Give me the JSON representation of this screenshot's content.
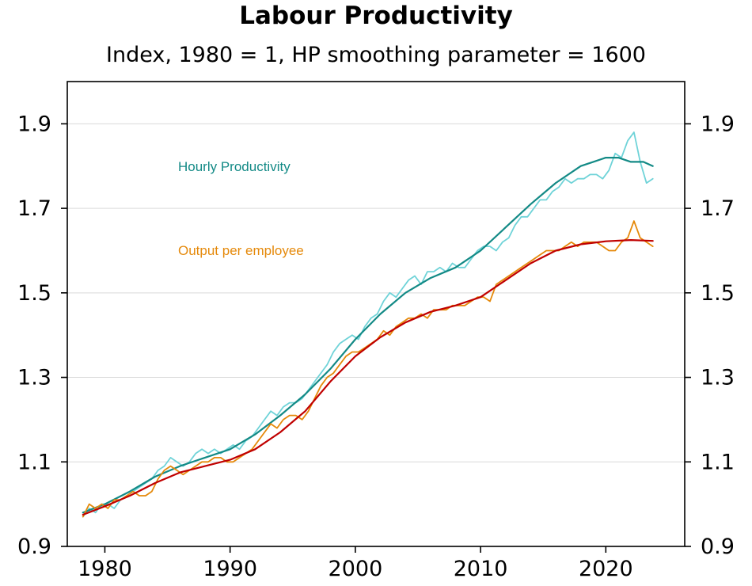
{
  "chart_data": {
    "type": "line",
    "title": "Labour Productivity",
    "subtitle": "Index, 1980 = 1, HP smoothing parameter = 1600",
    "xlabel": "",
    "ylabel": "",
    "xlim": [
      1977,
      2026.3
    ],
    "ylim": [
      0.9,
      2.0
    ],
    "x_ticks": [
      1980,
      1990,
      2000,
      2010,
      2020
    ],
    "y_ticks": [
      0.9,
      1.1,
      1.3,
      1.5,
      1.7,
      1.9
    ],
    "y_tick_labels": [
      "0.9",
      "1.1",
      "1.3",
      "1.5",
      "1.7",
      "1.9"
    ],
    "y_axis_both_sides": true,
    "grid": "horizontal",
    "legend": "inline labels",
    "annotations": [
      {
        "text": "Hourly Productivity",
        "series": "Hourly Productivity",
        "color": "#138a86"
      },
      {
        "text": "Output per employee",
        "series": "Output per employee",
        "color": "#e5890a"
      }
    ],
    "series": [
      {
        "name": "Hourly Productivity",
        "kind": "raw",
        "color": "#6fd3d8",
        "x": [
          1978.25,
          1978.75,
          1979.25,
          1979.75,
          1980.25,
          1980.75,
          1981.25,
          1981.75,
          1982.25,
          1982.75,
          1983.25,
          1983.75,
          1984.25,
          1984.75,
          1985.25,
          1985.75,
          1986.25,
          1986.75,
          1987.25,
          1987.75,
          1988.25,
          1988.75,
          1989.25,
          1989.75,
          1990.25,
          1990.75,
          1991.25,
          1991.75,
          1992.25,
          1992.75,
          1993.25,
          1993.75,
          1994.25,
          1994.75,
          1995.25,
          1995.75,
          1996.25,
          1996.75,
          1997.25,
          1997.75,
          1998.25,
          1998.75,
          1999.25,
          1999.75,
          2000.25,
          2000.75,
          2001.25,
          2001.75,
          2002.25,
          2002.75,
          2003.25,
          2003.75,
          2004.25,
          2004.75,
          2005.25,
          2005.75,
          2006.25,
          2006.75,
          2007.25,
          2007.75,
          2008.25,
          2008.75,
          2009.25,
          2009.75,
          2010.25,
          2010.75,
          2011.25,
          2011.75,
          2012.25,
          2012.75,
          2013.25,
          2013.75,
          2014.25,
          2014.75,
          2015.25,
          2015.75,
          2016.25,
          2016.75,
          2017.25,
          2017.75,
          2018.25,
          2018.75,
          2019.25,
          2019.75,
          2020.25,
          2020.75,
          2021.25,
          2021.75,
          2022.25,
          2022.75,
          2023.25,
          2023.75
        ],
        "values": [
          0.97,
          0.99,
          0.98,
          1.0,
          1.0,
          0.99,
          1.01,
          1.02,
          1.03,
          1.04,
          1.05,
          1.06,
          1.08,
          1.09,
          1.11,
          1.1,
          1.09,
          1.1,
          1.12,
          1.13,
          1.12,
          1.13,
          1.12,
          1.13,
          1.14,
          1.13,
          1.15,
          1.16,
          1.18,
          1.2,
          1.22,
          1.21,
          1.23,
          1.24,
          1.24,
          1.25,
          1.27,
          1.29,
          1.31,
          1.33,
          1.36,
          1.38,
          1.39,
          1.4,
          1.39,
          1.42,
          1.44,
          1.45,
          1.48,
          1.5,
          1.49,
          1.51,
          1.53,
          1.54,
          1.52,
          1.55,
          1.55,
          1.56,
          1.55,
          1.57,
          1.56,
          1.56,
          1.58,
          1.6,
          1.61,
          1.61,
          1.6,
          1.62,
          1.63,
          1.66,
          1.68,
          1.68,
          1.7,
          1.72,
          1.72,
          1.74,
          1.75,
          1.77,
          1.76,
          1.77,
          1.77,
          1.78,
          1.78,
          1.77,
          1.79,
          1.83,
          1.82,
          1.86,
          1.88,
          1.81,
          1.76,
          1.77
        ]
      },
      {
        "name": "Hourly Productivity (HP trend)",
        "kind": "trend",
        "color": "#138a86",
        "x": [
          1978.25,
          1980,
          1982,
          1984,
          1986,
          1988,
          1990,
          1992,
          1994,
          1996,
          1998,
          2000,
          2002,
          2004,
          2006,
          2008,
          2010,
          2012,
          2014,
          2016,
          2018,
          2019,
          2020,
          2021,
          2022,
          2023,
          2023.75
        ],
        "values": [
          0.98,
          1.0,
          1.03,
          1.065,
          1.09,
          1.11,
          1.13,
          1.165,
          1.21,
          1.26,
          1.32,
          1.39,
          1.45,
          1.5,
          1.535,
          1.56,
          1.6,
          1.655,
          1.71,
          1.76,
          1.8,
          1.81,
          1.82,
          1.82,
          1.81,
          1.81,
          1.8
        ]
      },
      {
        "name": "Output per employee",
        "kind": "raw",
        "color": "#e5890a",
        "x": [
          1978.25,
          1978.75,
          1979.25,
          1979.75,
          1980.25,
          1980.75,
          1981.25,
          1981.75,
          1982.25,
          1982.75,
          1983.25,
          1983.75,
          1984.25,
          1984.75,
          1985.25,
          1985.75,
          1986.25,
          1986.75,
          1987.25,
          1987.75,
          1988.25,
          1988.75,
          1989.25,
          1989.75,
          1990.25,
          1990.75,
          1991.25,
          1991.75,
          1992.25,
          1992.75,
          1993.25,
          1993.75,
          1994.25,
          1994.75,
          1995.25,
          1995.75,
          1996.25,
          1996.75,
          1997.25,
          1997.75,
          1998.25,
          1998.75,
          1999.25,
          1999.75,
          2000.25,
          2000.75,
          2001.25,
          2001.75,
          2002.25,
          2002.75,
          2003.25,
          2003.75,
          2004.25,
          2004.75,
          2005.25,
          2005.75,
          2006.25,
          2006.75,
          2007.25,
          2007.75,
          2008.25,
          2008.75,
          2009.25,
          2009.75,
          2010.25,
          2010.75,
          2011.25,
          2011.75,
          2012.25,
          2012.75,
          2013.25,
          2013.75,
          2014.25,
          2014.75,
          2015.25,
          2015.75,
          2016.25,
          2016.75,
          2017.25,
          2017.75,
          2018.25,
          2018.75,
          2019.25,
          2019.75,
          2020.25,
          2020.75,
          2021.25,
          2021.75,
          2022.25,
          2022.75,
          2023.25,
          2023.75
        ],
        "values": [
          0.97,
          1.0,
          0.99,
          1.0,
          0.99,
          1.01,
          1.01,
          1.02,
          1.03,
          1.02,
          1.02,
          1.03,
          1.06,
          1.08,
          1.09,
          1.08,
          1.07,
          1.08,
          1.09,
          1.1,
          1.1,
          1.11,
          1.11,
          1.1,
          1.1,
          1.11,
          1.12,
          1.13,
          1.15,
          1.17,
          1.19,
          1.18,
          1.2,
          1.21,
          1.21,
          1.2,
          1.22,
          1.25,
          1.28,
          1.3,
          1.31,
          1.33,
          1.35,
          1.36,
          1.36,
          1.37,
          1.38,
          1.39,
          1.41,
          1.4,
          1.42,
          1.43,
          1.44,
          1.44,
          1.45,
          1.44,
          1.46,
          1.46,
          1.46,
          1.47,
          1.47,
          1.47,
          1.48,
          1.49,
          1.49,
          1.48,
          1.52,
          1.53,
          1.54,
          1.55,
          1.56,
          1.57,
          1.58,
          1.59,
          1.6,
          1.6,
          1.6,
          1.61,
          1.62,
          1.61,
          1.62,
          1.62,
          1.62,
          1.61,
          1.6,
          1.6,
          1.62,
          1.63,
          1.67,
          1.63,
          1.62,
          1.61
        ]
      },
      {
        "name": "Output per employee (HP trend)",
        "kind": "trend",
        "color": "#c00000",
        "x": [
          1978.25,
          1980,
          1982,
          1984,
          1986,
          1988,
          1990,
          1992,
          1994,
          1996,
          1998,
          2000,
          2002,
          2004,
          2006,
          2008,
          2010,
          2012,
          2014,
          2016,
          2018,
          2020,
          2022,
          2023.75
        ],
        "values": [
          0.975,
          0.995,
          1.02,
          1.05,
          1.075,
          1.09,
          1.105,
          1.13,
          1.17,
          1.22,
          1.29,
          1.35,
          1.395,
          1.43,
          1.455,
          1.47,
          1.49,
          1.53,
          1.57,
          1.6,
          1.615,
          1.622,
          1.625,
          1.623
        ]
      }
    ]
  }
}
